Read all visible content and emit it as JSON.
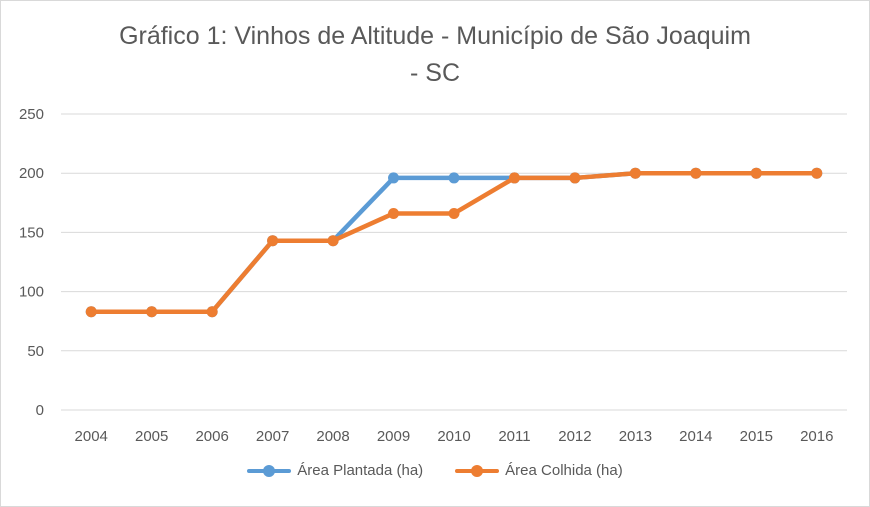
{
  "chart_data": {
    "type": "line",
    "title": "Gráfico 1: Vinhos de Altitude - Município de São Joaquim - SC",
    "title_lines": [
      "Gráfico 1: Vinhos de Altitude - Município de São Joaquim",
      "- SC"
    ],
    "x": [
      "2004",
      "2005",
      "2006",
      "2007",
      "2008",
      "2009",
      "2010",
      "2011",
      "2012",
      "2013",
      "2014",
      "2015",
      "2016"
    ],
    "y_ticks": [
      "0",
      "50",
      "100",
      "150",
      "200",
      "250"
    ],
    "ylim": [
      0,
      250
    ],
    "grid": true,
    "legend_position": "bottom",
    "series": [
      {
        "name": "Área Plantada (ha)",
        "color": "#5b9bd5",
        "values": [
          83,
          83,
          83,
          143,
          143,
          196,
          196,
          196,
          196,
          200,
          200,
          200,
          200
        ]
      },
      {
        "name": "Área Colhida (ha)",
        "color": "#ed7d31",
        "values": [
          83,
          83,
          83,
          143,
          143,
          166,
          166,
          196,
          196,
          200,
          200,
          200,
          200
        ]
      }
    ]
  }
}
